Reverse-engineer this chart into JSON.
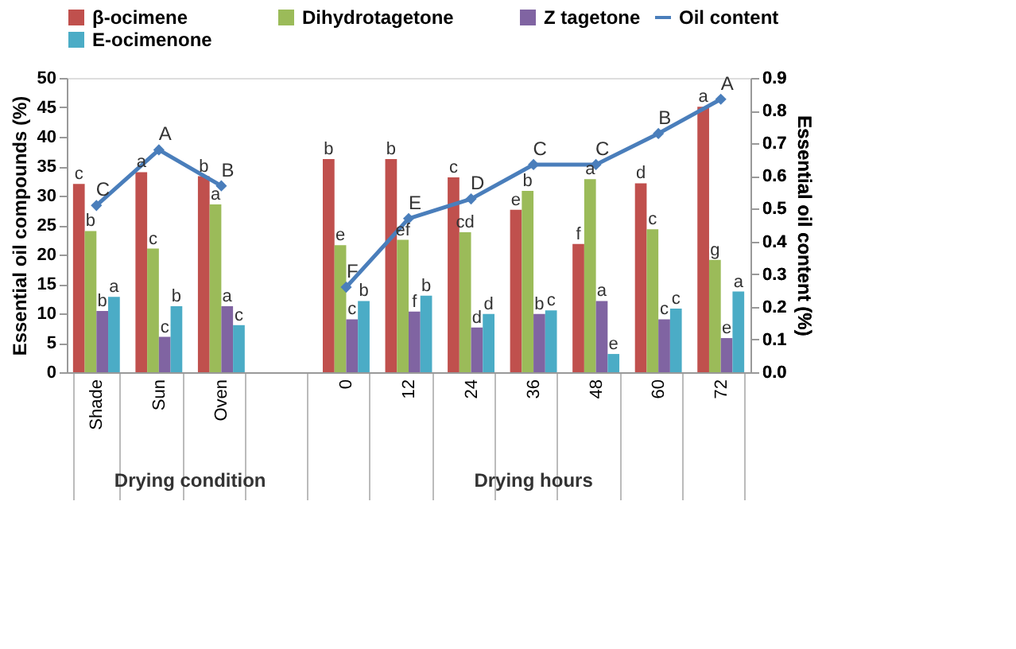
{
  "chart_data": {
    "type": "bar",
    "ylabel": "Essential oil compounds (%)",
    "y2label": "Essential oil content (%)",
    "categories": [
      "Shade",
      "Sun",
      "Oven",
      null,
      "0",
      "12",
      "24",
      "36",
      "48",
      "60",
      "72"
    ],
    "series": [
      {
        "name": "β-ocimene",
        "color": "#c0504d",
        "values": [
          32,
          34,
          33.3,
          null,
          36.2,
          36.2,
          33.1,
          27.6,
          21.8,
          32.1,
          45.1
        ],
        "value_labels": [
          "c",
          "a",
          "b",
          null,
          "b",
          "b",
          "c",
          "e",
          "f",
          "d",
          "a"
        ]
      },
      {
        "name": "Dihydrotagetone",
        "color": "#9bbb59",
        "values": [
          24,
          21,
          28.5,
          null,
          21.6,
          22.5,
          23.8,
          30.8,
          32.8,
          24.3,
          19.1
        ],
        "value_labels": [
          "b",
          "c",
          "a",
          null,
          "e",
          "ef",
          "cd",
          "b",
          "a",
          "c",
          "g"
        ]
      },
      {
        "name": "Z tagetone",
        "color": "#8064a2",
        "values": [
          10.4,
          6,
          11.2,
          null,
          9,
          10.3,
          7.6,
          9.9,
          12.1,
          9,
          5.8
        ],
        "value_labels": [
          "b",
          "c",
          "a",
          null,
          "c",
          "f",
          "d",
          "b",
          "a",
          "c",
          "e"
        ]
      },
      {
        "name": "E-ocimenone",
        "color": "#4bacc6",
        "values": [
          12.8,
          11.2,
          8,
          null,
          12.1,
          13,
          9.9,
          10.5,
          3.1,
          10.8,
          13.7
        ],
        "value_labels": [
          "a",
          "b",
          "c",
          null,
          "b",
          "b",
          "d",
          "c",
          "e",
          "c",
          "a"
        ]
      },
      {
        "name": "Oil content",
        "type": "line",
        "axis": "y2",
        "color": "#4a7ebb",
        "marker": "diamond",
        "values": [
          0.51,
          0.68,
          0.57,
          null,
          0.26,
          0.47,
          0.53,
          0.635,
          0.635,
          0.73,
          0.835
        ],
        "value_labels": [
          "C",
          "A",
          "B",
          null,
          "F",
          "E",
          "D",
          "C",
          "C",
          "B",
          "A"
        ]
      }
    ],
    "ylim": [
      0,
      50
    ],
    "yticks": [
      0,
      5,
      10,
      15,
      20,
      25,
      30,
      35,
      40,
      45,
      50
    ],
    "y2lim": [
      0,
      0.9
    ],
    "y2ticks": [
      {
        "value": 0,
        "label": "0.0"
      },
      0.1,
      0.2,
      0.3,
      0.4,
      0.5,
      0.6,
      0.7,
      0.8,
      0.9
    ],
    "legend": "top",
    "annotations": [
      "Drying condition",
      "Drying hours"
    ]
  }
}
